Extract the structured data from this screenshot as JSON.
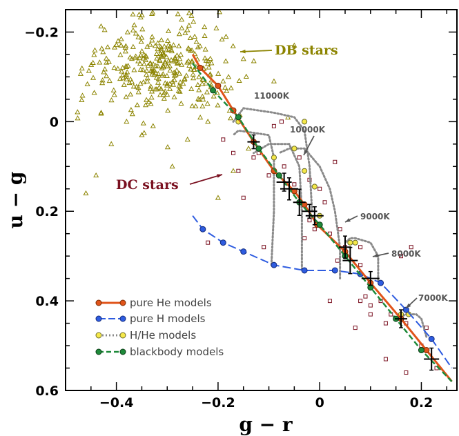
{
  "chart_data": {
    "type": "scatter",
    "xlabel": "g − r",
    "ylabel": "u − g",
    "xlim": [
      -0.5,
      0.27
    ],
    "ylim": [
      0.6,
      -0.25
    ],
    "x_ticks": [
      -0.4,
      -0.2,
      0,
      0.2
    ],
    "x_tick_labels": [
      "−0.4",
      "−0.2",
      "0",
      "0.2"
    ],
    "y_ticks": [
      -0.2,
      0,
      0.2,
      0.4,
      0.6
    ],
    "y_tick_labels": [
      "−0.2",
      "0",
      "0.2",
      "0.4",
      "0.6"
    ],
    "colors": {
      "db": "#8c8400",
      "dc": "#7a1020",
      "he": "#e0541a",
      "h": "#2e5ce0",
      "hhe": "#8a8a8a",
      "bb": "#1e8a3a"
    },
    "annotations": {
      "db_label": "DB stars",
      "dc_label": "DC stars",
      "temps": [
        "11000K",
        "10000K",
        "9000K",
        "8000K",
        "7000K"
      ]
    },
    "legend": [
      {
        "key": "he",
        "label": "pure He models"
      },
      {
        "key": "h",
        "label": "pure H models"
      },
      {
        "key": "hhe",
        "label": "H/He models"
      },
      {
        "key": "bb",
        "label": "blackbody models"
      }
    ],
    "series": {
      "he_models": [
        [
          -0.25,
          -0.15
        ],
        [
          -0.235,
          -0.12
        ],
        [
          -0.2,
          -0.08
        ],
        [
          -0.17,
          -0.025
        ],
        [
          -0.13,
          0.045
        ],
        [
          -0.09,
          0.11
        ],
        [
          -0.05,
          0.155
        ],
        [
          -0.03,
          0.185
        ],
        [
          -0.005,
          0.23
        ],
        [
          0.05,
          0.29
        ],
        [
          0.1,
          0.36
        ],
        [
          0.16,
          0.44
        ],
        [
          0.21,
          0.51
        ],
        [
          0.26,
          0.58
        ]
      ],
      "h_models": [
        [
          -0.25,
          0.21
        ],
        [
          -0.23,
          0.24
        ],
        [
          -0.19,
          0.27
        ],
        [
          -0.15,
          0.29
        ],
        [
          -0.09,
          0.32
        ],
        [
          -0.03,
          0.332
        ],
        [
          0.03,
          0.332
        ],
        [
          0.08,
          0.34
        ],
        [
          0.12,
          0.36
        ],
        [
          0.17,
          0.42
        ],
        [
          0.22,
          0.485
        ],
        [
          0.26,
          0.55
        ]
      ],
      "hhe_curves": [
        [
          [
            -0.095,
            0.32
          ],
          [
            -0.09,
            0.2
          ],
          [
            -0.09,
            0.08
          ],
          [
            -0.1,
            0.03
          ],
          [
            -0.16,
            0.02
          ],
          [
            -0.17,
            0.03
          ]
        ],
        [
          [
            -0.035,
            0.33
          ],
          [
            -0.035,
            0.2
          ],
          [
            -0.04,
            0.1
          ],
          [
            -0.06,
            0.05
          ],
          [
            -0.1,
            0.05
          ],
          [
            -0.13,
            0.07
          ]
        ],
        [
          [
            -0.015,
            0.2
          ],
          [
            -0.02,
            0.1
          ],
          [
            -0.03,
            0.02
          ],
          [
            -0.05,
            -0.01
          ],
          [
            -0.09,
            -0.02
          ],
          [
            -0.15,
            -0.03
          ],
          [
            -0.17,
            0.0
          ]
        ],
        [
          [
            0.04,
            0.35
          ],
          [
            0.04,
            0.28
          ],
          [
            0.03,
            0.2
          ],
          [
            0.02,
            0.15
          ],
          [
            0.0,
            0.1
          ],
          [
            -0.03,
            0.06
          ],
          [
            -0.06,
            0.06
          ],
          [
            -0.08,
            0.07
          ]
        ],
        [
          [
            0.115,
            0.355
          ],
          [
            0.115,
            0.3
          ],
          [
            0.1,
            0.27
          ],
          [
            0.07,
            0.26
          ],
          [
            0.06,
            0.26
          ],
          [
            0.05,
            0.27
          ]
        ],
        [
          [
            0.21,
            0.48
          ],
          [
            0.2,
            0.44
          ],
          [
            0.19,
            0.43
          ],
          [
            0.17,
            0.43
          ],
          [
            0.15,
            0.44
          ]
        ]
      ],
      "hhe_points": [
        [
          -0.16,
          0.0
        ],
        [
          -0.09,
          0.08
        ],
        [
          -0.05,
          0.06
        ],
        [
          -0.03,
          0.0
        ],
        [
          -0.03,
          0.11
        ],
        [
          -0.01,
          0.145
        ],
        [
          0.0,
          0.21
        ],
        [
          0.06,
          0.27
        ],
        [
          0.07,
          0.27
        ],
        [
          0.16,
          0.43
        ],
        [
          0.175,
          0.43
        ]
      ],
      "bb_models": [
        [
          -0.25,
          -0.13
        ],
        [
          -0.21,
          -0.07
        ],
        [
          -0.16,
          -0.01
        ],
        [
          -0.12,
          0.06
        ],
        [
          -0.08,
          0.12
        ],
        [
          -0.04,
          0.18
        ],
        [
          0.0,
          0.23
        ],
        [
          0.05,
          0.3
        ],
        [
          0.1,
          0.37
        ],
        [
          0.15,
          0.44
        ],
        [
          0.2,
          0.51
        ],
        [
          0.26,
          0.58
        ]
      ],
      "observed": [
        [
          -0.13,
          0.045
        ],
        [
          -0.07,
          0.135
        ],
        [
          -0.06,
          0.15
        ],
        [
          -0.04,
          0.18
        ],
        [
          -0.02,
          0.2
        ],
        [
          -0.01,
          0.21
        ],
        [
          0.05,
          0.28
        ],
        [
          0.06,
          0.31
        ],
        [
          0.1,
          0.35
        ],
        [
          0.16,
          0.44
        ],
        [
          0.22,
          0.53
        ]
      ],
      "dc_stars": [
        [
          -0.17,
          0.07
        ],
        [
          -0.13,
          0.08
        ],
        [
          -0.12,
          0.07
        ],
        [
          -0.1,
          0.12
        ],
        [
          -0.09,
          0.01
        ],
        [
          -0.075,
          0.0
        ],
        [
          -0.07,
          0.1
        ],
        [
          -0.05,
          0.14
        ],
        [
          -0.04,
          0.08
        ],
        [
          -0.02,
          0.13
        ],
        [
          -0.02,
          0.22
        ],
        [
          -0.01,
          0.24
        ],
        [
          0.0,
          0.15
        ],
        [
          0.01,
          0.18
        ],
        [
          0.02,
          0.25
        ],
        [
          0.03,
          0.09
        ],
        [
          0.035,
          0.31
        ],
        [
          0.04,
          0.24
        ],
        [
          0.05,
          0.28
        ],
        [
          0.08,
          0.28
        ],
        [
          0.08,
          0.32
        ],
        [
          0.09,
          0.39
        ],
        [
          0.1,
          0.41
        ],
        [
          0.12,
          0.4
        ],
        [
          0.13,
          0.45
        ],
        [
          0.14,
          0.43
        ],
        [
          0.16,
          0.3
        ],
        [
          0.17,
          0.45
        ],
        [
          0.17,
          0.56
        ],
        [
          0.18,
          0.28
        ],
        [
          0.2,
          0.5
        ],
        [
          0.21,
          0.46
        ],
        [
          0.23,
          0.55
        ],
        [
          -0.22,
          0.27
        ],
        [
          -0.19,
          0.04
        ],
        [
          -0.16,
          0.11
        ],
        [
          -0.15,
          0.17
        ],
        [
          0.08,
          0.4
        ],
        [
          0.1,
          0.43
        ],
        [
          0.13,
          0.53
        ],
        [
          -0.03,
          0.26
        ],
        [
          0.02,
          0.4
        ],
        [
          -0.11,
          0.28
        ],
        [
          0.07,
          0.46
        ]
      ]
    }
  }
}
